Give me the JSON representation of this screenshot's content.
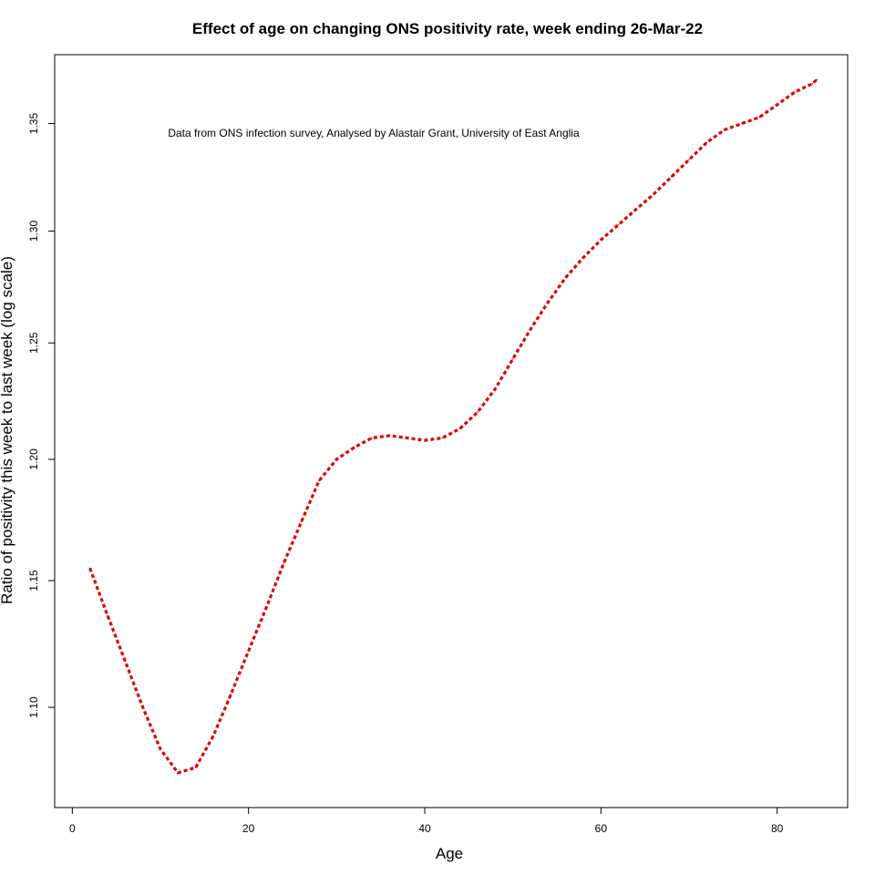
{
  "chart_data": {
    "type": "line",
    "title": "Effect of age on changing ONS positivity rate, week ending 26-Mar-22",
    "xlabel": "Age",
    "ylabel": "Ratio of positivity this week to last week (log scale)",
    "annotation": "Data from ONS infection survey, Analysed by Alastair Grant, University of East Anglia",
    "y_scale": "log",
    "grid": false,
    "legend": "none",
    "xlim": [
      -2,
      88
    ],
    "ylim": [
      1.062,
      1.383
    ],
    "x_ticks": [
      0,
      20,
      40,
      60,
      80
    ],
    "x_tick_labels": [
      "0",
      "20",
      "40",
      "60",
      "80"
    ],
    "y_ticks": [
      1.1,
      1.15,
      1.2,
      1.25,
      1.3,
      1.35
    ],
    "y_tick_labels": [
      "1.10",
      "1.15",
      "1.20",
      "1.25",
      "1.30",
      "1.35"
    ],
    "series": [
      {
        "color": "#e00000",
        "line_style": "dotted",
        "x": [
          2,
          4,
          6,
          8,
          10,
          12,
          14,
          16,
          18,
          20,
          22,
          24,
          26,
          28,
          30,
          32,
          34,
          36,
          38,
          40,
          42,
          44,
          46,
          48,
          50,
          52,
          54,
          56,
          58,
          60,
          62,
          64,
          66,
          68,
          70,
          72,
          74,
          76,
          78,
          80,
          82,
          84,
          84.5
        ],
        "y": [
          1.155,
          1.136,
          1.118,
          1.1,
          1.084,
          1.075,
          1.077,
          1.089,
          1.105,
          1.122,
          1.139,
          1.157,
          1.174,
          1.191,
          1.2,
          1.205,
          1.209,
          1.21,
          1.209,
          1.208,
          1.209,
          1.213,
          1.22,
          1.23,
          1.243,
          1.256,
          1.268,
          1.279,
          1.288,
          1.296,
          1.303,
          1.31,
          1.317,
          1.325,
          1.333,
          1.341,
          1.347,
          1.35,
          1.353,
          1.359,
          1.365,
          1.369,
          1.371
        ]
      }
    ]
  }
}
